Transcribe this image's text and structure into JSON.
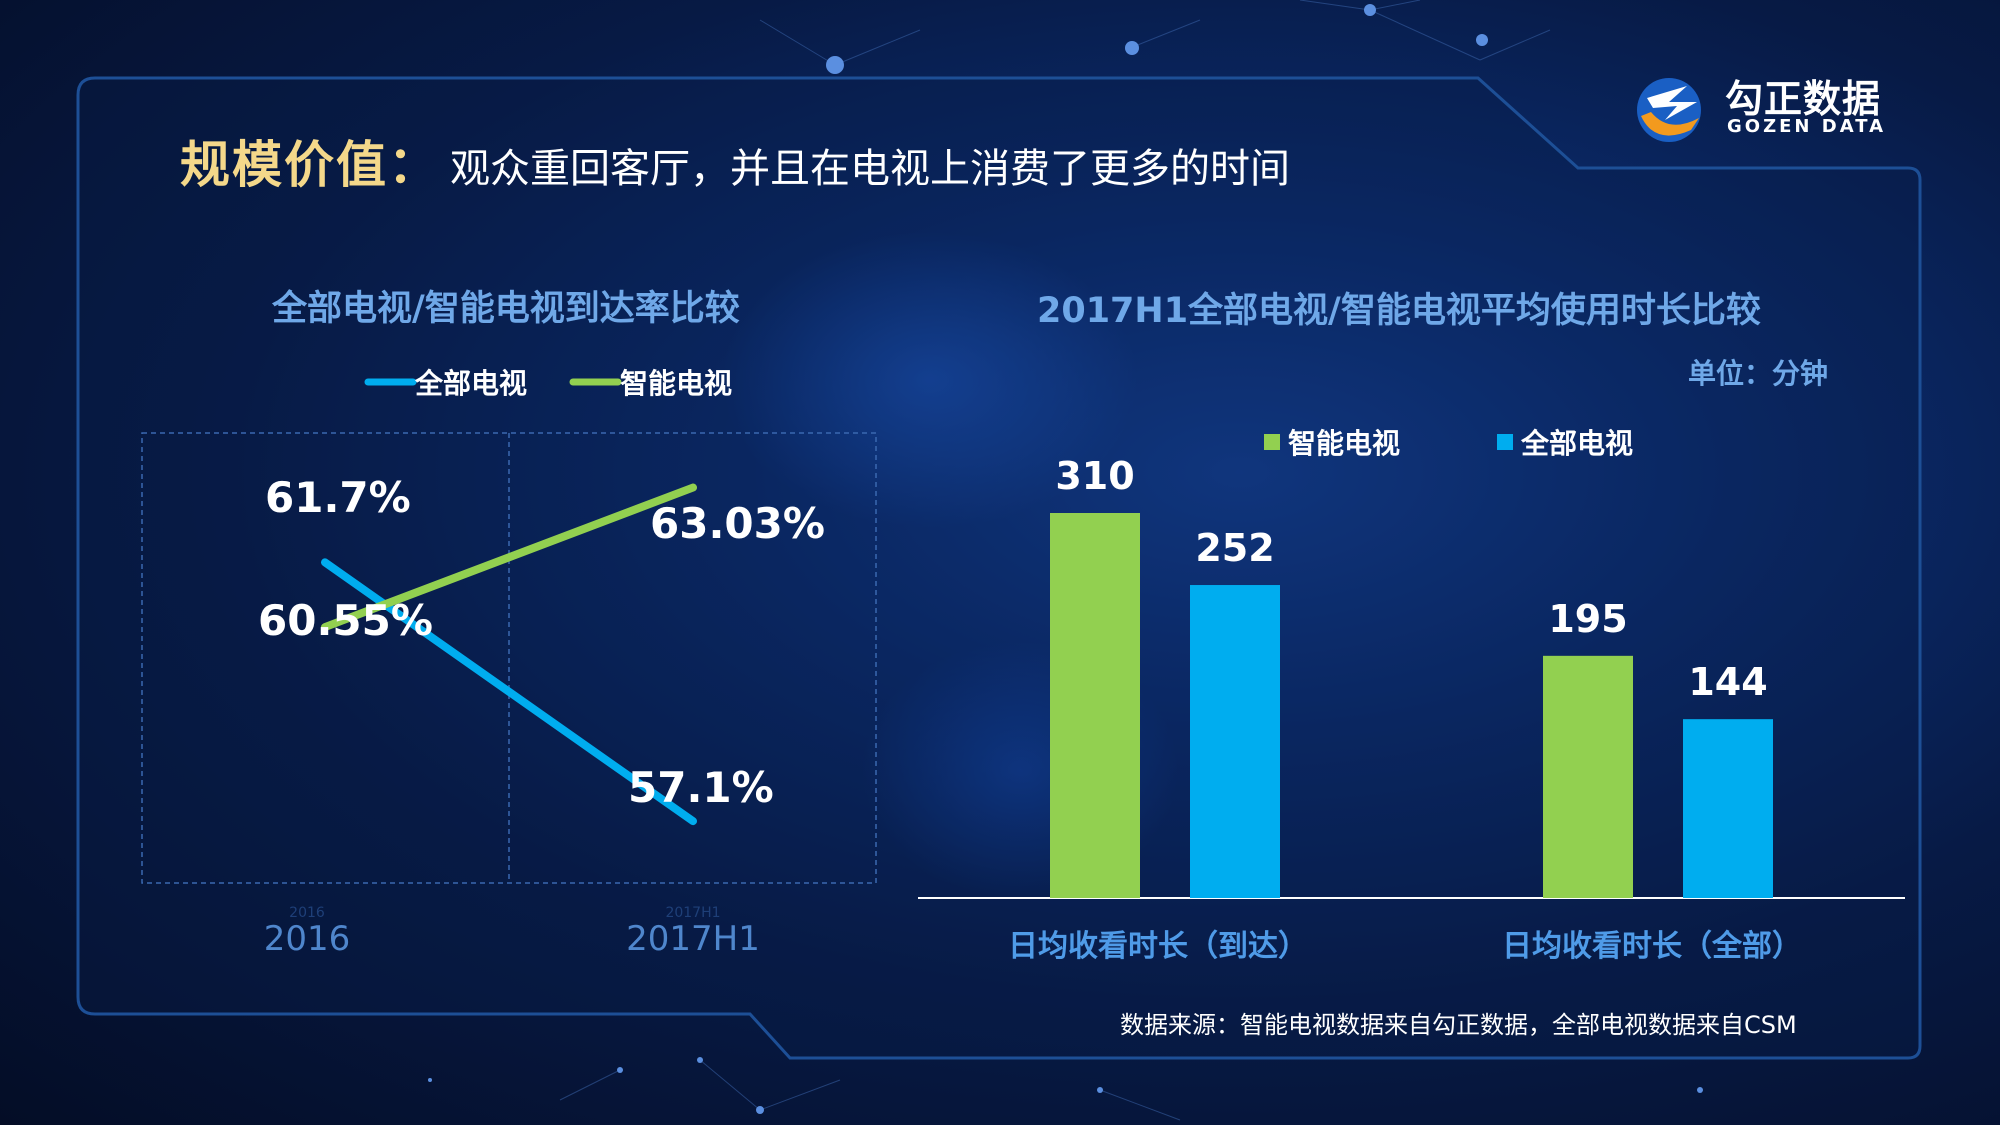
{
  "title": {
    "main": "规模价值：",
    "sub": "观众重回客厅，并且在电视上消费了更多的时间"
  },
  "logo": {
    "cn": "勾正数据",
    "en": "GOZEN DATA"
  },
  "colors": {
    "all_tv": "#00adef",
    "smart_tv": "#92d050",
    "title_gold": "#f4d88a",
    "chart_title": "#6fa8e8"
  },
  "line_chart": {
    "title": "全部电视/智能电视到达率比较"
  },
  "bar_chart": {
    "title": "2017H1全部电视/智能电视平均使用时长比较",
    "unit": "单位：分钟"
  },
  "source": "数据来源：智能电视数据来自勾正数据，全部电视数据来自CSM",
  "chart_data": [
    {
      "type": "line",
      "title": "全部电视/智能电视到达率比较",
      "categories": [
        "2016",
        "2017H1"
      ],
      "series": [
        {
          "name": "全部电视",
          "values": [
            61.7,
            57.1
          ],
          "labels": [
            "61.7%",
            "57.1%"
          ],
          "color": "#00adef"
        },
        {
          "name": "智能电视",
          "values": [
            60.55,
            63.03
          ],
          "labels": [
            "60.55%",
            "63.03%"
          ],
          "color": "#92d050"
        }
      ],
      "ylim": [
        56,
        64
      ],
      "grid": true,
      "legend": "top"
    },
    {
      "type": "bar",
      "title": "2017H1全部电视/智能电视平均使用时长比较",
      "unit": "单位：分钟",
      "categories": [
        "日均收看时长（到达）",
        "日均收看时长（全部）"
      ],
      "series": [
        {
          "name": "智能电视",
          "values": [
            310,
            195
          ],
          "color": "#92d050"
        },
        {
          "name": "全部电视",
          "values": [
            252,
            144
          ],
          "color": "#00adef"
        }
      ],
      "ylim": [
        0,
        330
      ],
      "legend": "top"
    }
  ]
}
